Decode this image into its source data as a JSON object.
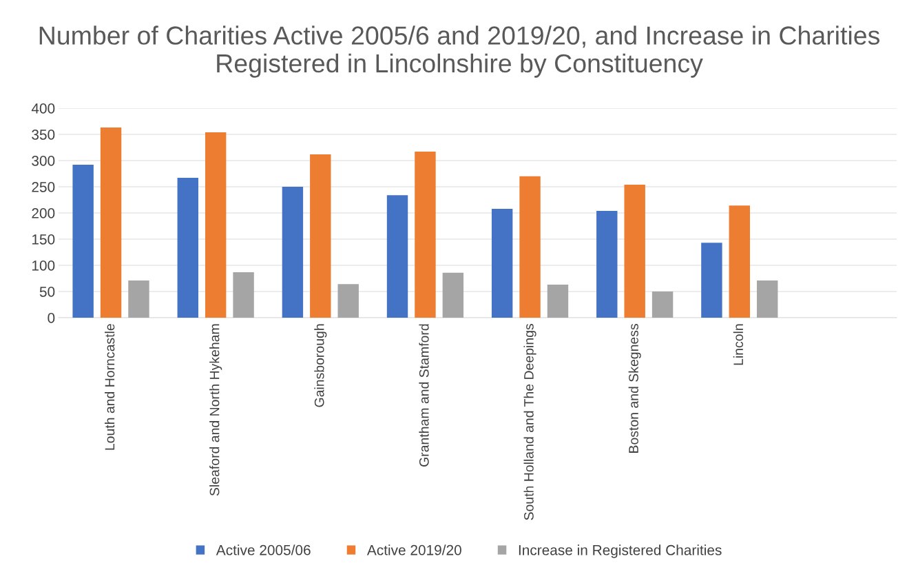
{
  "chart_data": {
    "type": "bar",
    "title": "Number of Charities Active 2005/6 and 2019/20, and Increase in Charities Registered in Lincolnshire by Constituency",
    "categories": [
      "Louth and Horncastle",
      "Sleaford and North Hykeham",
      "Gainsborough",
      "Grantham and Stamford",
      "South Holland and The Deepings",
      "Boston and Skegness",
      "Lincoln",
      null
    ],
    "series": [
      {
        "name": "Active 2005/06",
        "color": "#4472c4",
        "values": [
          292,
          267,
          250,
          234,
          208,
          204,
          143,
          null
        ]
      },
      {
        "name": "Active 2019/20",
        "color": "#ed7d31",
        "values": [
          363,
          354,
          312,
          317,
          270,
          254,
          214,
          null
        ]
      },
      {
        "name": "Increase in Registered Charities",
        "color": "#a5a5a5",
        "values": [
          71,
          87,
          64,
          86,
          63,
          50,
          71,
          null
        ]
      }
    ],
    "ylim": [
      0,
      400
    ],
    "yticks": [
      0,
      50,
      100,
      150,
      200,
      250,
      300,
      350,
      400
    ],
    "grid": "y",
    "legend": "bottom"
  }
}
